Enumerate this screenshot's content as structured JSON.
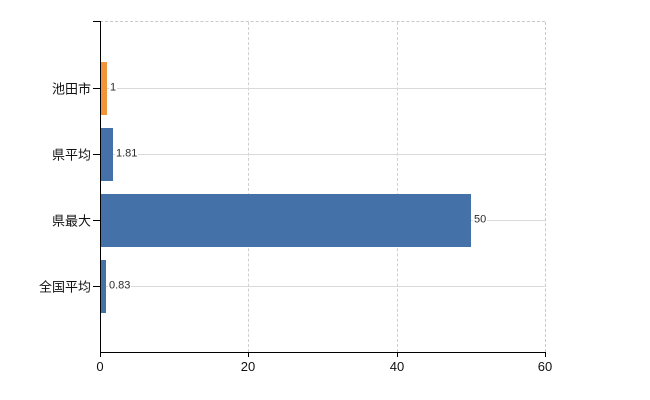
{
  "chart_data": {
    "type": "bar",
    "orientation": "horizontal",
    "title": "",
    "categories": [
      "池田市",
      "県平均",
      "県最大",
      "全国平均"
    ],
    "values": [
      1,
      1.81,
      50,
      0.83
    ],
    "value_labels": [
      "1",
      "1.81",
      "50",
      "0.83"
    ],
    "bar_colors": [
      "#f2943b",
      "#4472a8",
      "#4472a8",
      "#4472a8"
    ],
    "xlim": [
      0,
      60
    ],
    "x_ticks": [
      0,
      20,
      40,
      60
    ],
    "x_tick_labels": [
      "0",
      "20",
      "40",
      "60"
    ],
    "legend": "none",
    "grid": {
      "horizontal": "solid",
      "vertical": "dashed",
      "top_right_border": "dashed"
    }
  },
  "colors": {
    "bar_blue": "#4472a8",
    "bar_orange": "#f2943b",
    "axis": "#000000",
    "grid_horizontal": "#d9d9d9",
    "grid_vertical": "#cfcfcf",
    "plot_border_dashed": "#c9c9c9",
    "category_label": "#111111",
    "value_label": "#2b2b2b",
    "background": "#ffffff"
  }
}
